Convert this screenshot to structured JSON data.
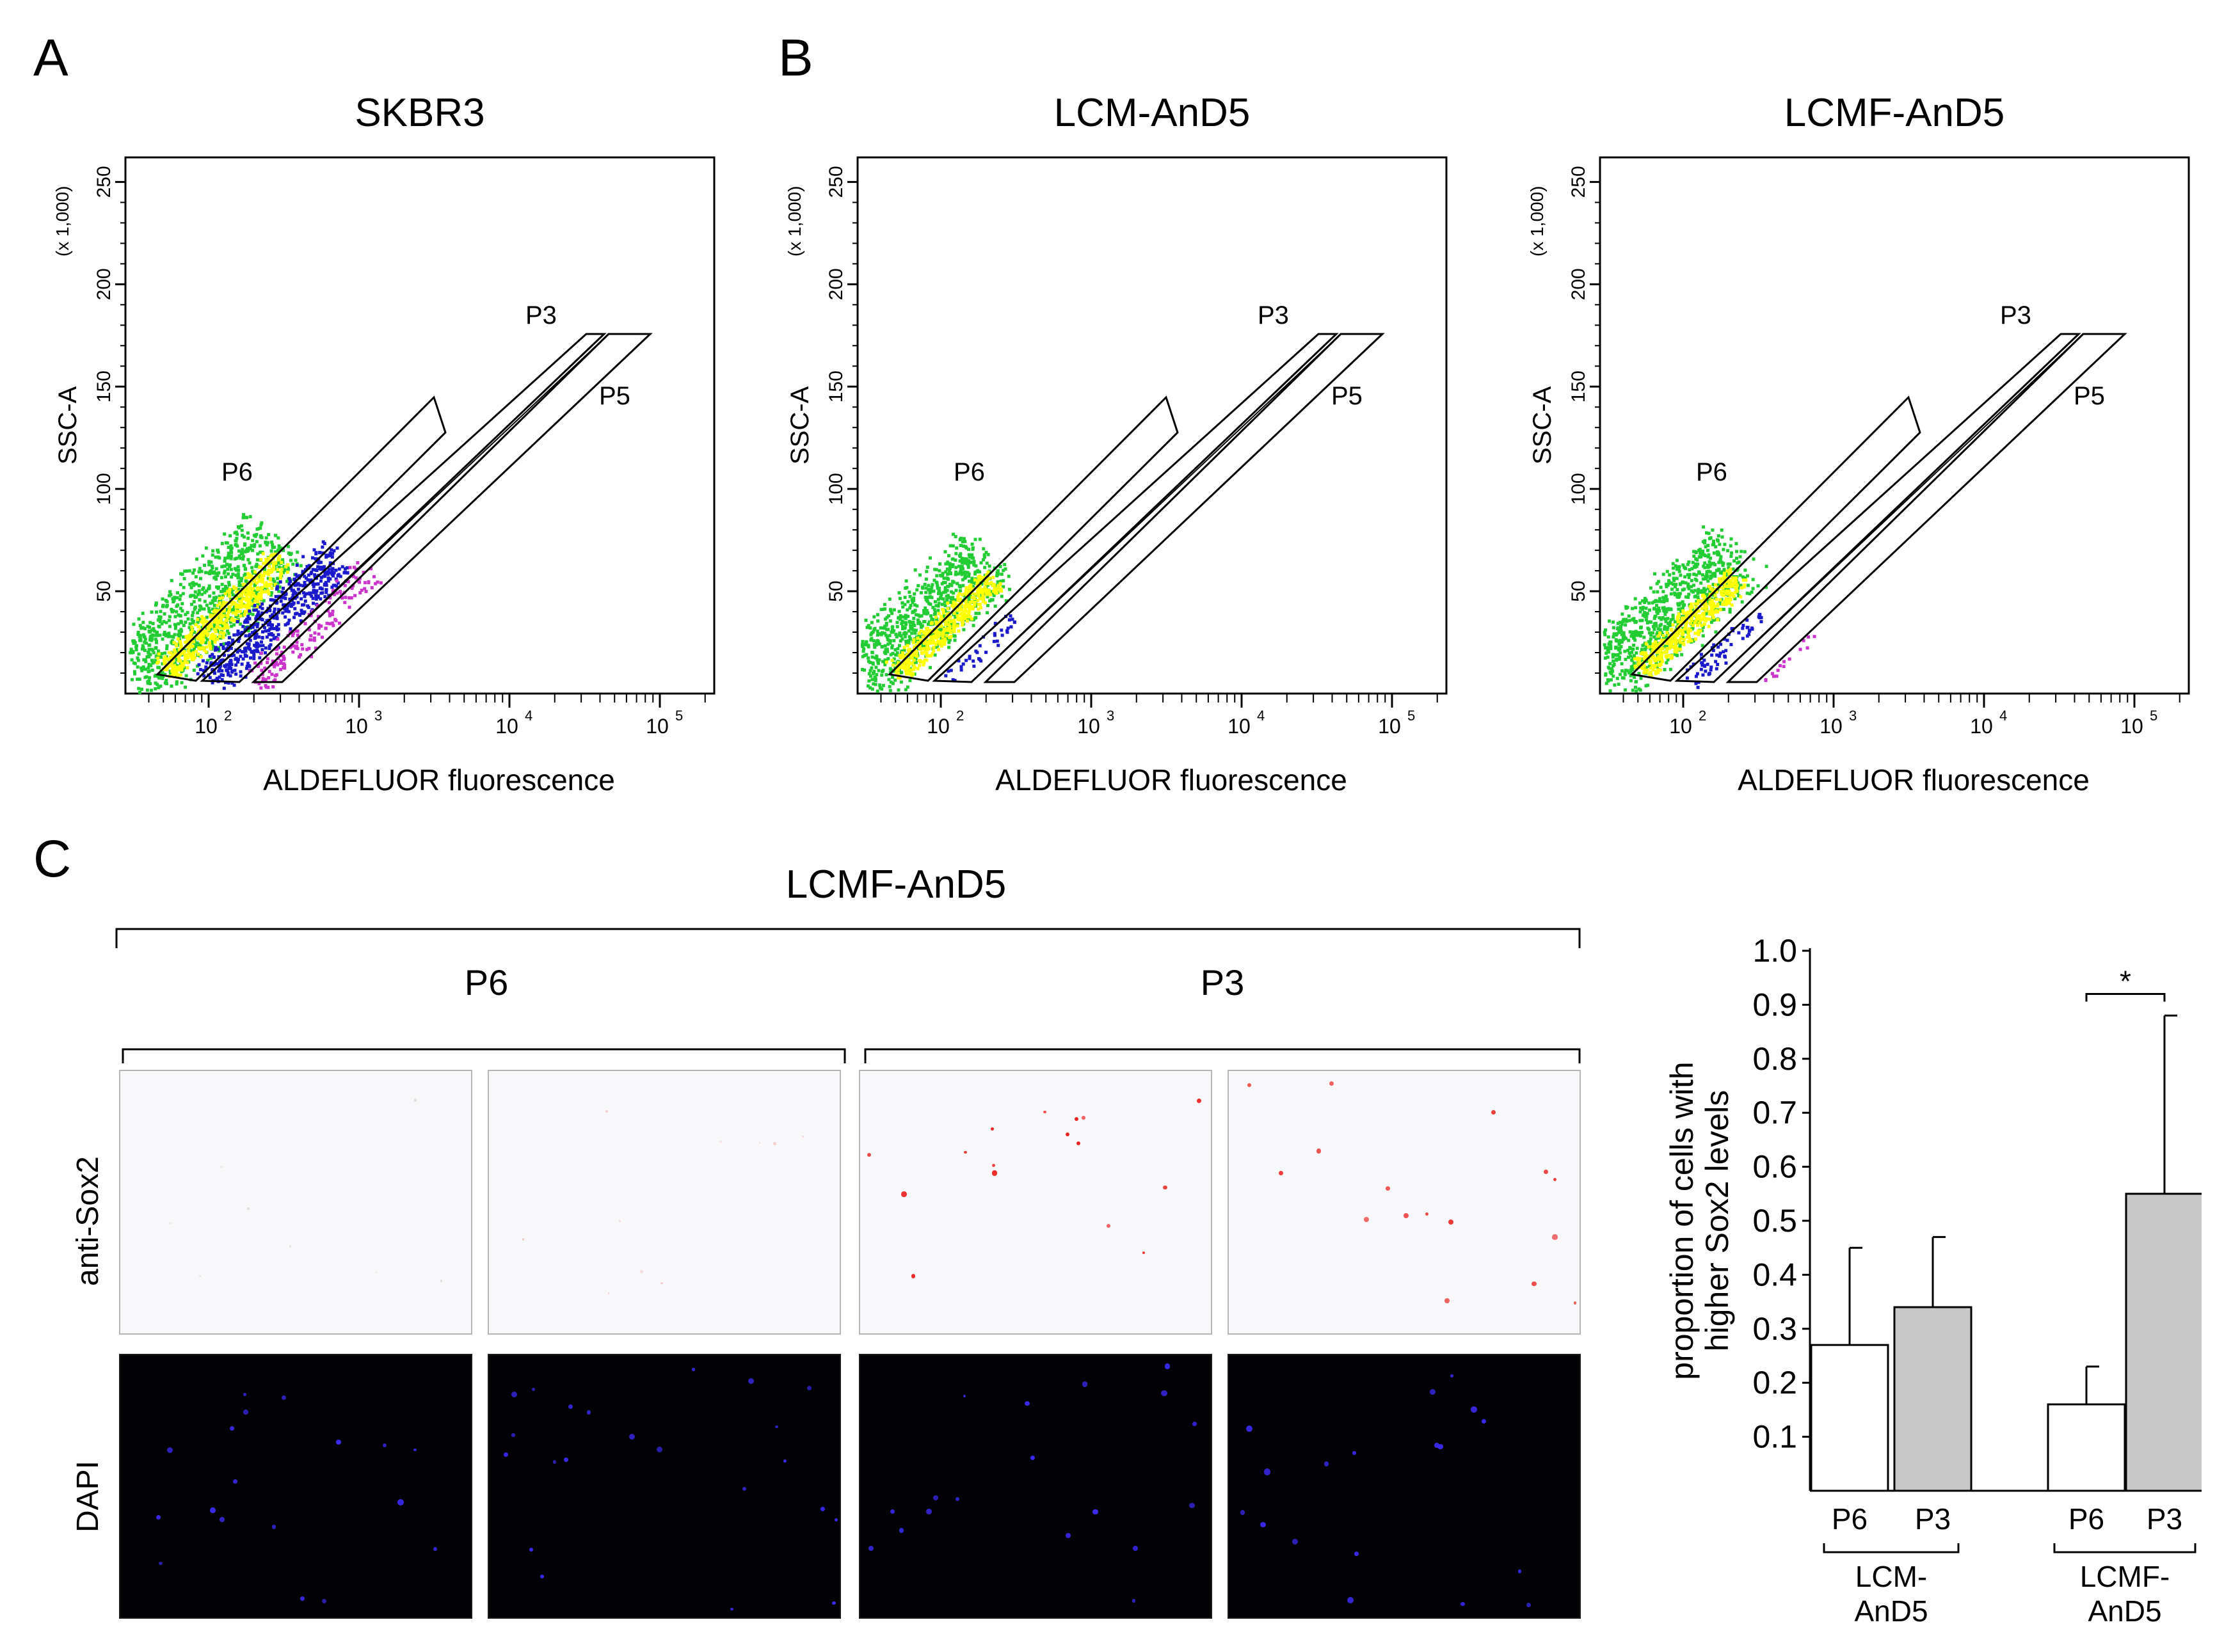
{
  "panels": {
    "A": "A",
    "B": "B",
    "C": "C"
  },
  "flow_plots": [
    {
      "title": "SKBR3",
      "xlabel": "ALDEFLUOR fluorescence",
      "ylabel": "SSC-A",
      "yunit": "(x 1,000)",
      "yticks": [
        "50",
        "100",
        "150",
        "200",
        "250"
      ],
      "xticks": [
        "10",
        "10",
        "10",
        "10"
      ],
      "xexp": [
        "2",
        "3",
        "4",
        "5"
      ],
      "gates": {
        "p6": "P6",
        "p3": "P3",
        "p5": "P5"
      },
      "colors": [
        "#22cc33",
        "#ffff00",
        "#1a1acc",
        "#cc33cc"
      ]
    },
    {
      "title": "LCM-AnD5",
      "xlabel": "ALDEFLUOR fluorescence",
      "ylabel": "SSC-A",
      "yunit": "(x 1,000)",
      "yticks": [
        "50",
        "100",
        "150",
        "200",
        "250"
      ],
      "xticks": [
        "10",
        "10",
        "10",
        "10"
      ],
      "xexp": [
        "2",
        "3",
        "4",
        "5"
      ],
      "gates": {
        "p6": "P6",
        "p3": "P3",
        "p5": "P5"
      },
      "colors": [
        "#22cc33",
        "#ffff00",
        "#1a1acc"
      ]
    },
    {
      "title": "LCMF-AnD5",
      "xlabel": "ALDEFLUOR fluorescence",
      "ylabel": "SSC-A",
      "yunit": "(x 1,000)",
      "yticks": [
        "50",
        "100",
        "150",
        "200",
        "250"
      ],
      "xticks": [
        "10",
        "10",
        "10",
        "10"
      ],
      "xexp": [
        "2",
        "3",
        "4",
        "5"
      ],
      "gates": {
        "p6": "P6",
        "p3": "P3",
        "p5": "P5"
      },
      "colors": [
        "#22cc33",
        "#ffff00",
        "#1a1acc",
        "#cc33cc"
      ]
    }
  ],
  "panel_c": {
    "title": "LCMF-AnD5",
    "groups": [
      "P6",
      "P3"
    ],
    "rows": [
      "anti-Sox2",
      "DAPI"
    ]
  },
  "chart_data": {
    "type": "bar",
    "ylabel_line1": "proportion of cells with",
    "ylabel_line2": "higher Sox2 levels",
    "ylim": [
      0,
      1.0
    ],
    "yticks": [
      "0.1",
      "0.2",
      "0.3",
      "0.4",
      "0.5",
      "0.6",
      "0.7",
      "0.8",
      "0.9",
      "1.0"
    ],
    "categories": [
      "P6",
      "P3",
      "P6",
      "P3"
    ],
    "groups": [
      {
        "line1": "LCM-",
        "line2": "AnD5"
      },
      {
        "line1": "LCMF-",
        "line2": "AnD5"
      }
    ],
    "series": [
      {
        "name": "LCM-AnD5 P6",
        "value": 0.27,
        "error": 0.18,
        "color": "#ffffff"
      },
      {
        "name": "LCM-AnD5 P3",
        "value": 0.34,
        "error": 0.13,
        "color": "#c8c8c8"
      },
      {
        "name": "LCMF-AnD5 P6",
        "value": 0.16,
        "error": 0.07,
        "color": "#ffffff"
      },
      {
        "name": "LCMF-AnD5 P3",
        "value": 0.55,
        "error": 0.33,
        "color": "#c8c8c8"
      }
    ],
    "significance": "*"
  }
}
